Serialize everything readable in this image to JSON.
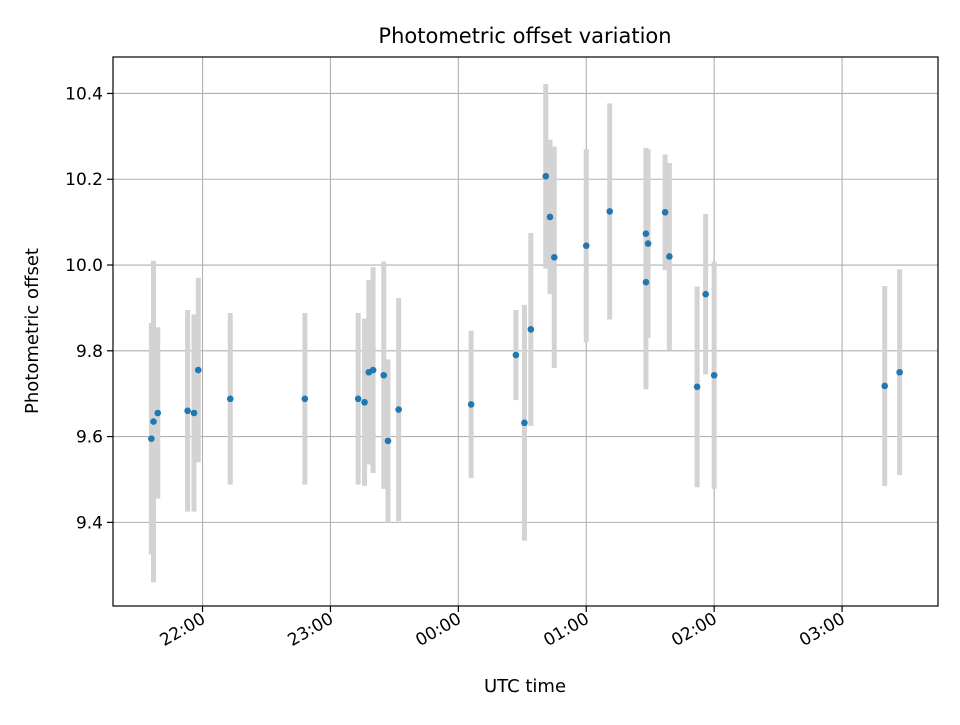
{
  "chart_data": {
    "type": "scatter",
    "title": "Photometric offset variation",
    "xlabel": "UTC time",
    "ylabel": "Photometric offset",
    "x_is_time": true,
    "xlim": [
      "21:18",
      "03:45"
    ],
    "ylim": [
      9.205,
      10.485
    ],
    "grid": true,
    "x_ticks": [
      "22:00",
      "23:00",
      "00:00",
      "01:00",
      "02:00",
      "03:00"
    ],
    "y_ticks": [
      "9.4",
      "9.6",
      "9.8",
      "10.0",
      "10.2",
      "10.4"
    ],
    "colors": {
      "point": "#1f77b4",
      "errorbar": "#d3d3d3",
      "grid": "#b0b0b0",
      "axes": "#000000"
    },
    "series": [
      {
        "points": [
          {
            "x": "21:36",
            "y": 9.595,
            "err": 0.27
          },
          {
            "x": "21:37",
            "y": 9.635,
            "err": 0.375
          },
          {
            "x": "21:39",
            "y": 9.655,
            "err": 0.2
          },
          {
            "x": "21:53",
            "y": 9.66,
            "err": 0.235
          },
          {
            "x": "21:56",
            "y": 9.655,
            "err": 0.23
          },
          {
            "x": "21:58",
            "y": 9.755,
            "err": 0.215
          },
          {
            "x": "22:13",
            "y": 9.688,
            "err": 0.2
          },
          {
            "x": "22:48",
            "y": 9.688,
            "err": 0.2
          },
          {
            "x": "23:13",
            "y": 9.688,
            "err": 0.2
          },
          {
            "x": "23:16",
            "y": 9.68,
            "err": 0.195
          },
          {
            "x": "23:18",
            "y": 9.75,
            "err": 0.215
          },
          {
            "x": "23:20",
            "y": 9.755,
            "err": 0.24
          },
          {
            "x": "23:25",
            "y": 9.743,
            "err": 0.265
          },
          {
            "x": "23:27",
            "y": 9.59,
            "err": 0.19
          },
          {
            "x": "23:32",
            "y": 9.663,
            "err": 0.26
          },
          {
            "x": "00:06",
            "y": 9.675,
            "err": 0.172
          },
          {
            "x": "00:27",
            "y": 9.79,
            "err": 0.105
          },
          {
            "x": "00:31",
            "y": 9.632,
            "err": 0.275
          },
          {
            "x": "00:34",
            "y": 9.85,
            "err": 0.225
          },
          {
            "x": "00:41",
            "y": 10.207,
            "err": 0.215
          },
          {
            "x": "00:43",
            "y": 10.112,
            "err": 0.18
          },
          {
            "x": "00:45",
            "y": 10.018,
            "err": 0.258
          },
          {
            "x": "01:00",
            "y": 10.045,
            "err": 0.225
          },
          {
            "x": "01:11",
            "y": 10.125,
            "err": 0.252
          },
          {
            "x": "01:28",
            "y": 9.96,
            "err": 0.25
          },
          {
            "x": "01:28",
            "y": 10.073,
            "err": 0.2
          },
          {
            "x": "01:29",
            "y": 10.05,
            "err": 0.22
          },
          {
            "x": "01:37",
            "y": 10.123,
            "err": 0.135
          },
          {
            "x": "01:39",
            "y": 10.02,
            "err": 0.218
          },
          {
            "x": "01:52",
            "y": 9.716,
            "err": 0.234
          },
          {
            "x": "01:56",
            "y": 9.932,
            "err": 0.187
          },
          {
            "x": "02:00",
            "y": 9.743,
            "err": 0.265
          },
          {
            "x": "03:20",
            "y": 9.718,
            "err": 0.233
          },
          {
            "x": "03:27",
            "y": 9.75,
            "err": 0.24
          }
        ]
      }
    ]
  }
}
